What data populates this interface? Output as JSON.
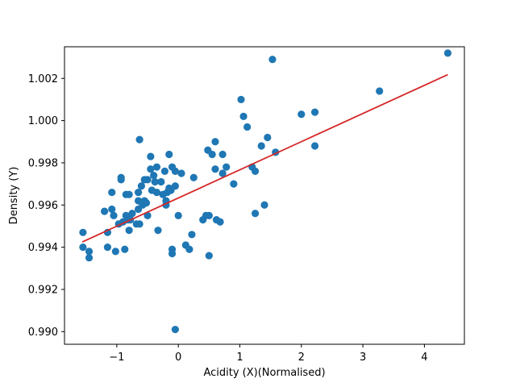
{
  "chart_data": {
    "type": "scatter",
    "xlabel": "Acidity (X)(Normalised)",
    "ylabel": "Density (Y)",
    "xlim": [
      -1.85,
      4.65
    ],
    "ylim": [
      0.9894,
      1.0035
    ],
    "xticks": [
      -1,
      0,
      1,
      2,
      3,
      4
    ],
    "yticks": [
      0.99,
      0.992,
      0.994,
      0.996,
      0.998,
      1.0,
      1.002
    ],
    "ytick_labels": [
      "0.990",
      "0.992",
      "0.994",
      "0.996",
      "0.998",
      "1.000",
      "1.002"
    ],
    "grid": false,
    "point_color": "#1f77b4",
    "line_color": "#d62728",
    "regression_line": {
      "x": [
        -1.56,
        4.38
      ],
      "y": [
        0.99425,
        1.00218
      ]
    },
    "points": [
      {
        "x": -1.55,
        "y": 0.9947
      },
      {
        "x": -1.55,
        "y": 0.994
      },
      {
        "x": -1.45,
        "y": 0.9938
      },
      {
        "x": -1.45,
        "y": 0.9935
      },
      {
        "x": -1.2,
        "y": 0.9957
      },
      {
        "x": -1.15,
        "y": 0.9947
      },
      {
        "x": -1.15,
        "y": 0.994
      },
      {
        "x": -1.08,
        "y": 0.9966
      },
      {
        "x": -1.08,
        "y": 0.9958
      },
      {
        "x": -1.05,
        "y": 0.9955
      },
      {
        "x": -1.02,
        "y": 0.9938
      },
      {
        "x": -0.97,
        "y": 0.9951
      },
      {
        "x": -0.93,
        "y": 0.9972
      },
      {
        "x": -0.93,
        "y": 0.9973
      },
      {
        "x": -0.9,
        "y": 0.9952
      },
      {
        "x": -0.87,
        "y": 0.9939
      },
      {
        "x": -0.85,
        "y": 0.9965
      },
      {
        "x": -0.85,
        "y": 0.9955
      },
      {
        "x": -0.82,
        "y": 0.9953
      },
      {
        "x": -0.8,
        "y": 0.9965
      },
      {
        "x": -0.8,
        "y": 0.9948
      },
      {
        "x": -0.78,
        "y": 0.9953
      },
      {
        "x": -0.75,
        "y": 0.9956
      },
      {
        "x": -0.68,
        "y": 0.9951
      },
      {
        "x": -0.65,
        "y": 0.9966
      },
      {
        "x": -0.65,
        "y": 0.9962
      },
      {
        "x": -0.65,
        "y": 0.9958
      },
      {
        "x": -0.63,
        "y": 0.9951
      },
      {
        "x": -0.63,
        "y": 0.9991
      },
      {
        "x": -0.6,
        "y": 0.9969
      },
      {
        "x": -0.58,
        "y": 0.996
      },
      {
        "x": -0.55,
        "y": 0.9972
      },
      {
        "x": -0.55,
        "y": 0.9962
      },
      {
        "x": -0.52,
        "y": 0.9961
      },
      {
        "x": -0.5,
        "y": 0.9972
      },
      {
        "x": -0.5,
        "y": 0.9955
      },
      {
        "x": -0.45,
        "y": 0.9983
      },
      {
        "x": -0.45,
        "y": 0.9977
      },
      {
        "x": -0.43,
        "y": 0.9967
      },
      {
        "x": -0.4,
        "y": 0.9974
      },
      {
        "x": -0.38,
        "y": 0.9971
      },
      {
        "x": -0.35,
        "y": 0.9978
      },
      {
        "x": -0.35,
        "y": 0.9966
      },
      {
        "x": -0.33,
        "y": 0.9948
      },
      {
        "x": -0.28,
        "y": 0.9971
      },
      {
        "x": -0.25,
        "y": 0.9965
      },
      {
        "x": -0.22,
        "y": 0.9976
      },
      {
        "x": -0.2,
        "y": 0.9962
      },
      {
        "x": -0.2,
        "y": 0.996
      },
      {
        "x": -0.18,
        "y": 0.9966
      },
      {
        "x": -0.15,
        "y": 0.9984
      },
      {
        "x": -0.15,
        "y": 0.9968
      },
      {
        "x": -0.12,
        "y": 0.9967
      },
      {
        "x": -0.1,
        "y": 0.9978
      },
      {
        "x": -0.1,
        "y": 0.9939
      },
      {
        "x": -0.1,
        "y": 0.9937
      },
      {
        "x": -0.05,
        "y": 0.9976
      },
      {
        "x": -0.05,
        "y": 0.9969
      },
      {
        "x": -0.05,
        "y": 0.9901
      },
      {
        "x": 0.0,
        "y": 0.9955
      },
      {
        "x": 0.05,
        "y": 0.9975
      },
      {
        "x": 0.12,
        "y": 0.9941
      },
      {
        "x": 0.18,
        "y": 0.9939
      },
      {
        "x": 0.22,
        "y": 0.9946
      },
      {
        "x": 0.25,
        "y": 0.9973
      },
      {
        "x": 0.4,
        "y": 0.9953
      },
      {
        "x": 0.45,
        "y": 0.9955
      },
      {
        "x": 0.48,
        "y": 0.9986
      },
      {
        "x": 0.5,
        "y": 0.9955
      },
      {
        "x": 0.5,
        "y": 0.9936
      },
      {
        "x": 0.55,
        "y": 0.9984
      },
      {
        "x": 0.6,
        "y": 0.999
      },
      {
        "x": 0.6,
        "y": 0.9977
      },
      {
        "x": 0.62,
        "y": 0.9953
      },
      {
        "x": 0.68,
        "y": 0.9952
      },
      {
        "x": 0.72,
        "y": 0.9984
      },
      {
        "x": 0.72,
        "y": 0.9975
      },
      {
        "x": 0.78,
        "y": 0.9978
      },
      {
        "x": 0.9,
        "y": 0.997
      },
      {
        "x": 1.02,
        "y": 1.001
      },
      {
        "x": 1.06,
        "y": 1.0002
      },
      {
        "x": 1.12,
        "y": 0.9997
      },
      {
        "x": 1.2,
        "y": 0.9978
      },
      {
        "x": 1.25,
        "y": 0.9976
      },
      {
        "x": 1.25,
        "y": 0.9956
      },
      {
        "x": 1.35,
        "y": 0.9988
      },
      {
        "x": 1.4,
        "y": 0.996
      },
      {
        "x": 1.45,
        "y": 0.9992
      },
      {
        "x": 1.53,
        "y": 1.0029
      },
      {
        "x": 1.58,
        "y": 0.9985
      },
      {
        "x": 2.0,
        "y": 1.0003
      },
      {
        "x": 2.22,
        "y": 1.0004
      },
      {
        "x": 2.22,
        "y": 0.9988
      },
      {
        "x": 3.27,
        "y": 1.0014
      },
      {
        "x": 4.38,
        "y": 1.0032
      }
    ]
  }
}
